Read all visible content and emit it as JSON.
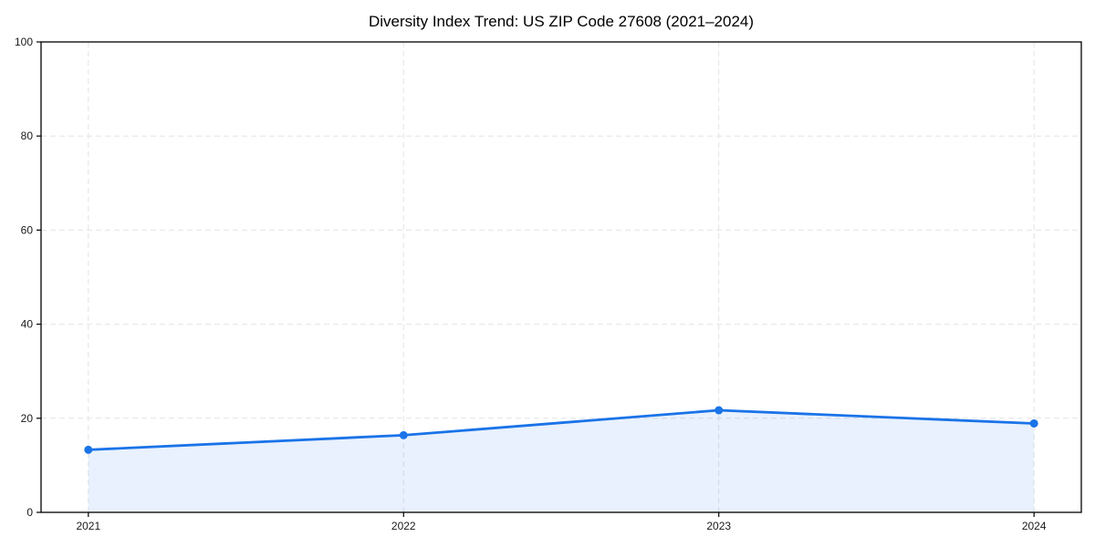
{
  "chart_data": {
    "type": "area",
    "title": "Diversity Index Trend: US ZIP Code 27608 (2021–2024)",
    "x": [
      2021,
      2022,
      2023,
      2024
    ],
    "values": [
      13.3,
      16.4,
      21.7,
      18.9
    ],
    "xticks": [
      2021,
      2022,
      2023,
      2024
    ],
    "xtick_labels": [
      "2021",
      "2022",
      "2023",
      "2024"
    ],
    "yticks": [
      0,
      20,
      40,
      60,
      80,
      100
    ],
    "ytick_labels": [
      "0",
      "20",
      "40",
      "60",
      "80",
      "100"
    ],
    "xlim": [
      2020.85,
      2024.15
    ],
    "ylim": [
      0,
      100
    ],
    "grid": true,
    "legend": false,
    "xlabel": "",
    "ylabel": "",
    "colors": {
      "line": "#1a73e8",
      "marker": "#1a73e8",
      "fill": "#1a73e8",
      "fill_opacity": 0.1,
      "grid": "#e4e4e4",
      "frame": "#000000",
      "tick_label": "#1a1a1a",
      "title": "#000000",
      "background": "#ffffff"
    }
  }
}
